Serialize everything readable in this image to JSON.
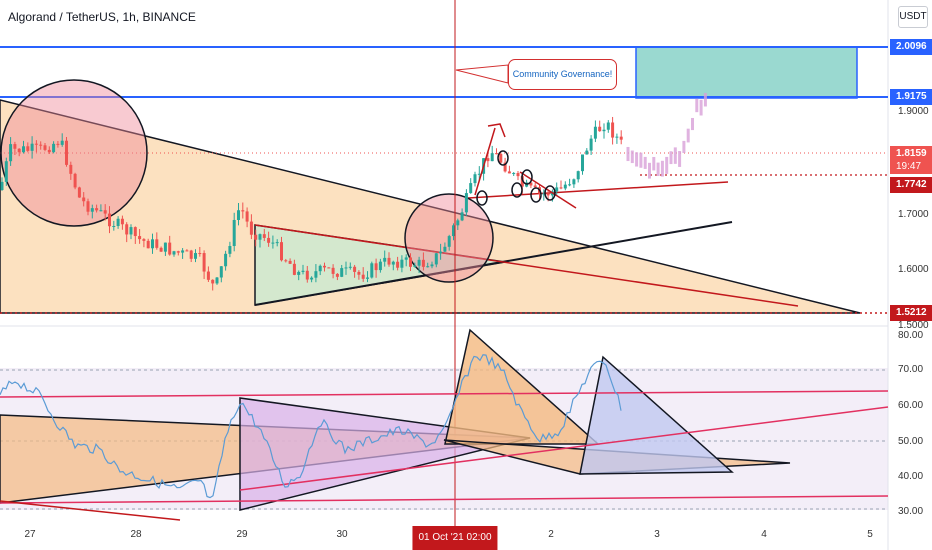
{
  "header": {
    "title": "Algorand / TetherUS, 1h, BINANCE",
    "currency": "USDT"
  },
  "annotation": {
    "callout_text": "Community Governance!"
  },
  "price_axis": {
    "tags": [
      {
        "label": "2.0096",
        "color": "#2962ff"
      },
      {
        "label": "1.9175",
        "color": "#2962ff"
      },
      {
        "label": "1.8159",
        "label2": "19:47",
        "color": "#ef5350"
      },
      {
        "label": "1.7742",
        "color": "#c2181c"
      },
      {
        "label": "1.5212",
        "color": "#c2181c"
      }
    ],
    "ticks": [
      "1.9000",
      "1.7000",
      "1.6000",
      "1.5000"
    ]
  },
  "indicator_axis": {
    "ticks": [
      "80.00",
      "70.00",
      "60.00",
      "50.00",
      "40.00",
      "30.00"
    ]
  },
  "time_axis": {
    "labels": [
      "27",
      "28",
      "29",
      "30",
      "2",
      "3",
      "4",
      "5"
    ],
    "current": "01 Oct '21   02:00"
  },
  "colors": {
    "up": "#26a69a",
    "down": "#ef5350",
    "rsi_line": "#5b9bd5",
    "level_line": "#2962ff",
    "projection": "#d8a0d8"
  }
}
